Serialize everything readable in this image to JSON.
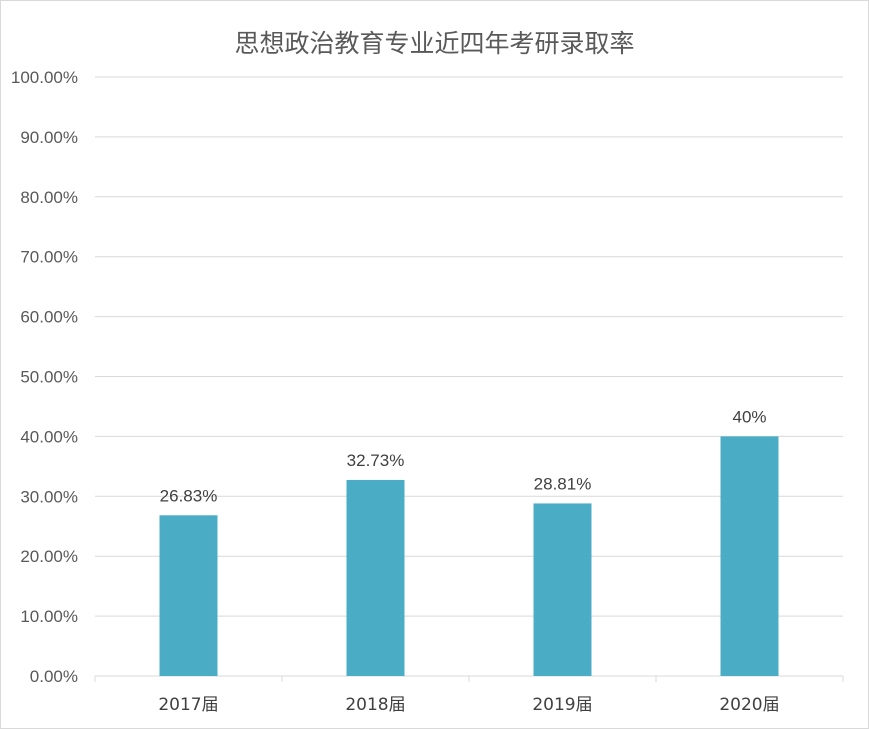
{
  "chart_data": {
    "type": "bar",
    "title": "思想政治教育专业近四年考研录取率",
    "categories": [
      "2017届",
      "2018届",
      "2019届",
      "2020届"
    ],
    "values": [
      26.83,
      32.73,
      28.81,
      40
    ],
    "data_labels": [
      "26.83%",
      "32.73%",
      "28.81%",
      "40%"
    ],
    "ylim": [
      0,
      100
    ],
    "y_ticks": [
      "0.00%",
      "10.00%",
      "20.00%",
      "30.00%",
      "40.00%",
      "50.00%",
      "60.00%",
      "70.00%",
      "80.00%",
      "90.00%",
      "100.00%"
    ],
    "grid": true,
    "legend": "none",
    "colors": {
      "bar": "#4BACC6",
      "grid": "#d9d9d9"
    }
  }
}
